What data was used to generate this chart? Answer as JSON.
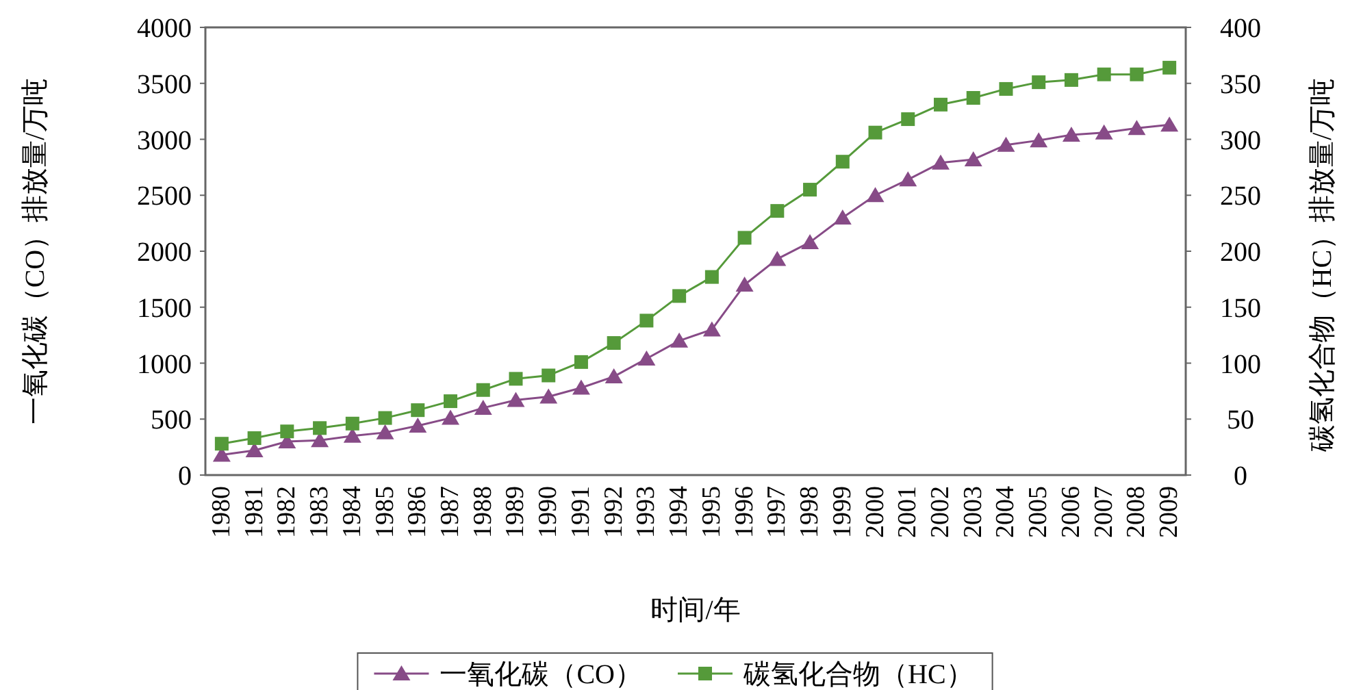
{
  "chart_data": {
    "type": "line",
    "categories": [
      "1980",
      "1981",
      "1982",
      "1983",
      "1984",
      "1985",
      "1986",
      "1987",
      "1988",
      "1989",
      "1990",
      "1991",
      "1992",
      "1993",
      "1994",
      "1995",
      "1996",
      "1997",
      "1998",
      "1999",
      "2000",
      "2001",
      "2002",
      "2003",
      "2004",
      "2005",
      "2006",
      "2007",
      "2008",
      "2009"
    ],
    "series": [
      {
        "name": "一氧化碳（CO）",
        "color": "#874b87",
        "marker": "triangle",
        "values": [
          180,
          220,
          300,
          310,
          350,
          380,
          440,
          510,
          600,
          670,
          700,
          780,
          880,
          1040,
          1200,
          1300,
          1700,
          1930,
          2080,
          2300,
          2500,
          2640,
          2790,
          2820,
          2950,
          2990,
          3040,
          3060,
          3100,
          3130
        ]
      },
      {
        "name": "碳氢化合物（HC）",
        "color": "#559a3a",
        "marker": "square",
        "axis": "y2",
        "values": [
          28,
          33,
          39,
          42,
          46,
          51,
          58,
          66,
          76,
          86,
          89,
          101,
          118,
          138,
          160,
          177,
          212,
          236,
          255,
          280,
          306,
          318,
          331,
          337,
          345,
          351,
          353,
          358,
          358,
          364
        ]
      }
    ],
    "xlabel": "时间/年",
    "ylabel": "一氧化碳（CO）排放量/万吨",
    "y2label": "碳氢化合物（HC）排放量/万吨",
    "ylim": [
      0,
      4000
    ],
    "yticks": [
      0,
      500,
      1000,
      1500,
      2000,
      2500,
      3000,
      3500,
      4000
    ],
    "y2lim": [
      0,
      400
    ],
    "y2ticks": [
      0,
      50,
      100,
      150,
      200,
      250,
      300,
      350,
      400
    ],
    "legend": "bottom",
    "grid": false
  }
}
